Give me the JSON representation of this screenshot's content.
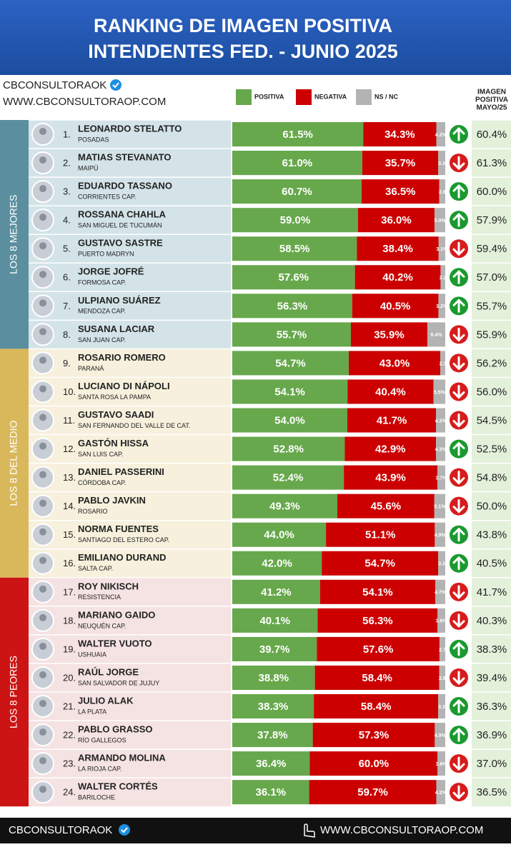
{
  "chart_data": {
    "type": "stacked-bar-ranking",
    "title": "RANKING DE IMAGEN POSITIVA",
    "subtitle": "INTENDENTES FED. - JUNIO 2025",
    "brand": "CBCONSULTORAOK",
    "website": "WWW.CBCONSULTORAOP.COM",
    "previous_header": [
      "IMAGEN",
      "POSITIVA",
      "MAYO/25"
    ],
    "xlim": [
      0,
      100
    ],
    "groups": [
      {
        "name": "LOS 8 MEJORES",
        "color": "#5b8fa0",
        "background": "#d3e3e8"
      },
      {
        "name": "LOS 8 DEL MEDIO",
        "color": "#d9b85c",
        "background": "#f6f0dc"
      },
      {
        "name": "LOS 8 PEORES",
        "color": "#cc1414",
        "background": "#f5e2e2"
      }
    ],
    "ranks": [
      "1.",
      "2.",
      "3.",
      "4.",
      "5.",
      "6.",
      "7.",
      "8.",
      "9.",
      "10.",
      "11.",
      "12.",
      "13.",
      "14.",
      "15.",
      "16.",
      "17.",
      "18.",
      "19.",
      "20.",
      "21.",
      "22.",
      "23.",
      "24."
    ],
    "categories": [
      "LEONARDO STELATTO",
      "MATIAS STEVANATO",
      "EDUARDO TASSANO",
      "ROSSANA CHAHLA",
      "GUSTAVO SASTRE",
      "JORGE JOFRÉ",
      "ULPIANO SUÁREZ",
      "SUSANA LACIAR",
      "ROSARIO ROMERO",
      "LUCIANO DI NÁPOLI",
      "GUSTAVO SAADI",
      "GASTÓN HISSA",
      "DANIEL PASSERINI",
      "PABLO JAVKIN",
      "NORMA FUENTES",
      "EMILIANO DURAND",
      "ROY NIKISCH",
      "MARIANO GAIDO",
      "WALTER VUOTO",
      "RAÚL JORGE",
      "JULIO ALAK",
      "PABLO GRASSO",
      "ARMANDO MOLINA",
      "WALTER CORTÉS"
    ],
    "cities": [
      "POSADAS",
      "MAIPÚ",
      "CORRIENTES  CAP.",
      "SAN MIGUEL DE TUCUMÁN",
      "PUERTO MADRYN",
      "FORMOSA CAP.",
      "MENDOZA CAP.",
      "SAN JUAN CAP.",
      "PARANÁ",
      "SANTA ROSA LA PAMPA",
      "SAN FERNANDO DEL VALLE DE CAT.",
      "SAN LUIS CAP.",
      "CÓRDOBA CAP.",
      "ROSARIO",
      "SANTIAGO DEL ESTERO CAP.",
      "SALTA CAP.",
      "RESISTENCIA",
      "NEUQUÉN CAP.",
      "USHUAIA",
      "SAN SALVADOR DE JUJUY",
      "LA PLATA",
      "RÍO GALLEGOS",
      "LA RIOJA CAP.",
      "BARILOCHE"
    ],
    "series": [
      {
        "name": "POSITIVA",
        "color": "#67a84c",
        "values": [
          61.5,
          61.0,
          60.7,
          59.0,
          58.5,
          57.6,
          56.3,
          55.7,
          54.7,
          54.1,
          54.0,
          52.8,
          52.4,
          49.3,
          44.0,
          42.0,
          41.2,
          40.1,
          39.7,
          38.8,
          38.3,
          37.8,
          36.4,
          36.1
        ],
        "value_labels": [
          "61.5%",
          "61.0%",
          "60.7%",
          "59.0%",
          "58.5%",
          "57.6%",
          "56.3%",
          "55.7%",
          "54.7%",
          "54.1%",
          "54.0%",
          "52.8%",
          "52.4%",
          "49.3%",
          "44.0%",
          "42.0%",
          "41.2%",
          "40.1%",
          "39.7%",
          "38.8%",
          "38.3%",
          "37.8%",
          "36.4%",
          "36.1%"
        ]
      },
      {
        "name": "NEGATIVA",
        "color": "#cc0000",
        "values": [
          34.3,
          35.7,
          36.5,
          36.0,
          38.4,
          40.2,
          40.5,
          35.9,
          43.0,
          40.4,
          41.7,
          42.9,
          43.9,
          45.6,
          51.1,
          54.7,
          54.1,
          56.3,
          57.6,
          58.4,
          58.4,
          57.3,
          60.0,
          59.7
        ],
        "value_labels": [
          "34.3%",
          "35.7%",
          "36.5%",
          "36.0%",
          "38.4%",
          "40.2%",
          "40.5%",
          "35.9%",
          "43.0%",
          "40.4%",
          "41.7%",
          "42.9%",
          "43.9%",
          "45.6%",
          "51.1%",
          "54.7%",
          "54.1%",
          "56.3%",
          "57.6%",
          "58.4%",
          "58.4%",
          "57.3%",
          "60.0%",
          "59.7%"
        ]
      },
      {
        "name": "NS / NC",
        "color": "#b3b3b3",
        "values": [
          4.2,
          3.3,
          2.8,
          5.0,
          3.1,
          2.2,
          3.2,
          8.4,
          2.3,
          5.5,
          4.3,
          4.3,
          3.7,
          5.1,
          4.9,
          3.3,
          4.7,
          3.6,
          2.7,
          2.8,
          3.3,
          4.9,
          3.6,
          4.2
        ],
        "value_labels": [
          "4.2%",
          "3.3",
          "2.8",
          "5.0%",
          "3.1%",
          "2.2",
          "3.2%",
          "8.4%",
          "2.3",
          "5.5%",
          "4.3%",
          "4.3%",
          "3.7%",
          "5.1%",
          "4.9%",
          "3.3",
          "4.7%",
          "3.6%",
          "2.7",
          "2.8",
          "3.3",
          "4.9%",
          "3.6%",
          "4.2%"
        ]
      }
    ],
    "trend": [
      "up",
      "down",
      "up",
      "up",
      "down",
      "up",
      "up",
      "down",
      "down",
      "down",
      "down",
      "up",
      "down",
      "down",
      "up",
      "up",
      "down",
      "down",
      "up",
      "down",
      "up",
      "up",
      "down",
      "down"
    ],
    "trend_colors": {
      "up": "#1a9a2e",
      "down": "#d61c1c"
    },
    "previous": {
      "background": "#e3f0da",
      "values": [
        60.4,
        61.3,
        60.0,
        57.9,
        59.4,
        57.0,
        55.7,
        55.9,
        56.2,
        56.0,
        54.5,
        52.5,
        54.8,
        50.0,
        43.8,
        40.5,
        41.7,
        40.3,
        38.3,
        39.4,
        36.3,
        36.9,
        37.0,
        36.5
      ],
      "value_labels": [
        "60.4%",
        "61.3%",
        "60.0%",
        "57.9%",
        "59.4%",
        "57.0%",
        "55.7%",
        "55.9%",
        "56.2%",
        "56.0%",
        "54.5%",
        "52.5%",
        "54.8%",
        "50.0%",
        "43.8%",
        "40.5%",
        "41.7%",
        "40.3%",
        "38.3%",
        "39.4%",
        "36.3%",
        "36.9%",
        "37.0%",
        "36.5%"
      ]
    }
  }
}
